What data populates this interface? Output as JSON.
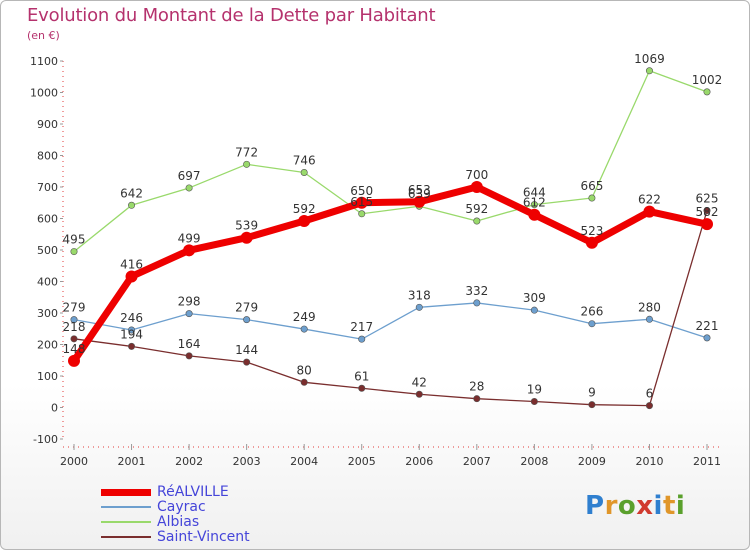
{
  "title": "Evolution du Montant de la Dette par Habitant",
  "subtitle": "(en €)",
  "logo": {
    "text": "Proxiti",
    "letters": [
      {
        "char": "P",
        "color": "#2f7fcf"
      },
      {
        "char": "r",
        "color": "#e0962a"
      },
      {
        "char": "o",
        "color": "#5aa02c"
      },
      {
        "char": "x",
        "color": "#d13a2f"
      },
      {
        "char": "i",
        "color": "#2f7fcf"
      },
      {
        "char": "t",
        "color": "#e0962a"
      },
      {
        "char": "i",
        "color": "#5aa02c"
      }
    ]
  },
  "chart_data": {
    "type": "line",
    "title": "Evolution du Montant de la Dette par Habitant",
    "subtitle": "(en €)",
    "x": [
      "2000",
      "2001",
      "2002",
      "2003",
      "2004",
      "2005",
      "2006",
      "2007",
      "2008",
      "2009",
      "2010",
      "2011"
    ],
    "ylim": [
      -100,
      1100
    ],
    "yticks": [
      -100,
      0,
      100,
      200,
      300,
      400,
      500,
      600,
      700,
      800,
      900,
      1000,
      1100
    ],
    "grid": false,
    "legend_position": "bottom-left",
    "series": [
      {
        "name": "RéALVILLE",
        "color": "#ee0000",
        "values": [
          148,
          416,
          499,
          539,
          592,
          650,
          653,
          700,
          612,
          523,
          622,
          582
        ],
        "labels": [
          "148",
          "416",
          "499",
          "539",
          "592",
          "650",
          "653",
          "700",
          "612",
          "523",
          "622",
          "582"
        ]
      },
      {
        "name": "Cayrac",
        "color": "#6d9fce",
        "values": [
          279,
          246,
          298,
          279,
          249,
          217,
          318,
          332,
          309,
          266,
          280,
          221
        ],
        "labels": [
          "279",
          "246",
          "298",
          "279",
          "249",
          "217",
          "318",
          "332",
          "309",
          "266",
          "280",
          "221"
        ]
      },
      {
        "name": "Albias",
        "color": "#99d96b",
        "values": [
          495,
          642,
          697,
          772,
          746,
          615,
          639,
          592,
          644,
          665,
          1069,
          1002
        ],
        "labels": [
          "495",
          "642",
          "697",
          "772",
          "746",
          "615",
          "639",
          "592",
          "644",
          "665",
          "1069",
          "1002"
        ]
      },
      {
        "name": "Saint-Vincent",
        "color": "#7a2e2e",
        "values": [
          218,
          194,
          164,
          144,
          80,
          61,
          42,
          28,
          19,
          9,
          6,
          625
        ],
        "labels": [
          "218",
          "194",
          "164",
          "144",
          "80",
          "61",
          "42",
          "28",
          "19",
          "9",
          "6",
          "625"
        ]
      }
    ]
  }
}
